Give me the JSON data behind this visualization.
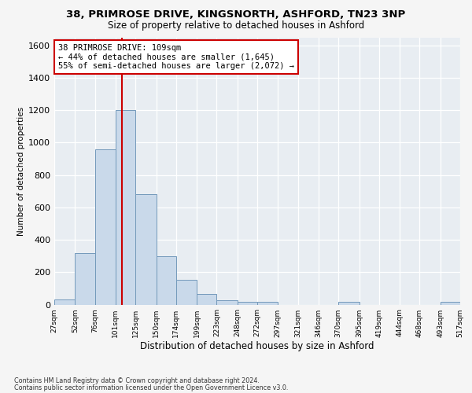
{
  "title_line1": "38, PRIMROSE DRIVE, KINGSNORTH, ASHFORD, TN23 3NP",
  "title_line2": "Size of property relative to detached houses in Ashford",
  "xlabel": "Distribution of detached houses by size in Ashford",
  "ylabel": "Number of detached properties",
  "footnote1": "Contains HM Land Registry data © Crown copyright and database right 2024.",
  "footnote2": "Contains public sector information licensed under the Open Government Licence v3.0.",
  "annotation_line1": "38 PRIMROSE DRIVE: 109sqm",
  "annotation_line2": "← 44% of detached houses are smaller (1,645)",
  "annotation_line3": "55% of semi-detached houses are larger (2,072) →",
  "bar_color": "#c9d9ea",
  "bar_edge_color": "#7399bb",
  "redline_x": 109,
  "ylim": [
    0,
    1650
  ],
  "yticks": [
    0,
    200,
    400,
    600,
    800,
    1000,
    1200,
    1400,
    1600
  ],
  "bin_edges": [
    27,
    52,
    76,
    101,
    125,
    150,
    174,
    199,
    223,
    248,
    272,
    297,
    321,
    346,
    370,
    395,
    419,
    444,
    468,
    493,
    517
  ],
  "bar_heights": [
    30,
    320,
    960,
    1200,
    680,
    300,
    155,
    65,
    25,
    15,
    15,
    0,
    0,
    0,
    15,
    0,
    0,
    0,
    0,
    15
  ],
  "tick_labels": [
    "27sqm",
    "52sqm",
    "76sqm",
    "101sqm",
    "125sqm",
    "150sqm",
    "174sqm",
    "199sqm",
    "223sqm",
    "248sqm",
    "272sqm",
    "297sqm",
    "321sqm",
    "346sqm",
    "370sqm",
    "395sqm",
    "419sqm",
    "444sqm",
    "468sqm",
    "493sqm",
    "517sqm"
  ],
  "bg_color": "#f5f5f5",
  "plot_bg_color": "#e8edf2",
  "grid_color": "#ffffff",
  "annotation_box_color": "#ffffff",
  "annotation_box_edge": "#cc0000",
  "redline_color": "#cc0000",
  "title1_fontsize": 9.5,
  "title2_fontsize": 8.5,
  "ylabel_fontsize": 7.5,
  "xlabel_fontsize": 8.5,
  "ytick_fontsize": 8,
  "xtick_fontsize": 6.5,
  "annot_fontsize": 7.5,
  "footnote_fontsize": 5.8
}
